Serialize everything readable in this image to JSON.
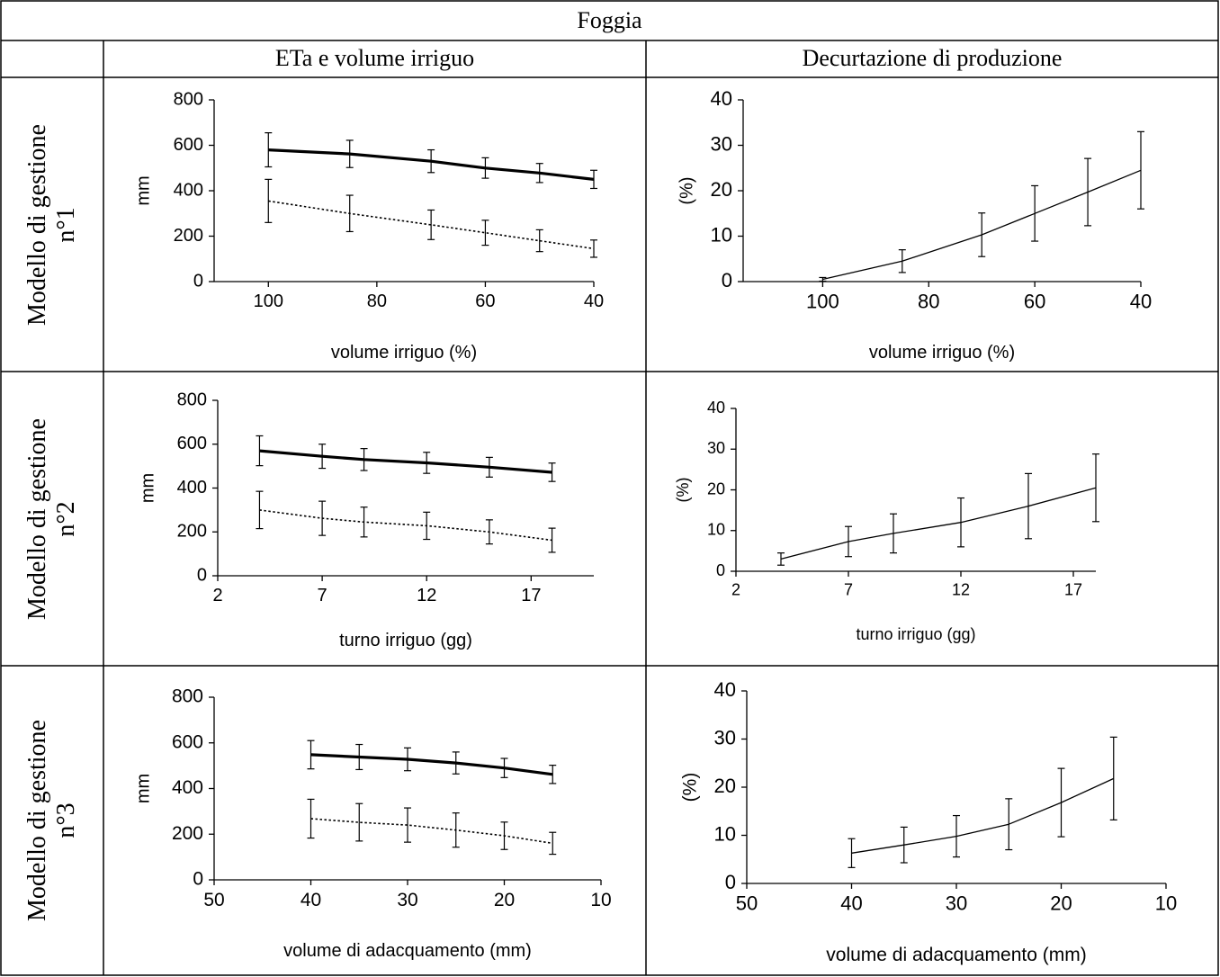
{
  "table": {
    "title": "Foggia",
    "col_headers": [
      "ETa e volume irriguo",
      "Decurtazione di produzione"
    ],
    "row_labels": [
      {
        "line1": "Modello di gestione",
        "line2": "n°1"
      },
      {
        "line1": "Modello di gestione",
        "line2": "n°2"
      },
      {
        "line1": "Modello di gestione",
        "line2": "n°3"
      }
    ]
  },
  "chart_data": [
    {
      "id": "r1-eta",
      "type": "line",
      "title": "",
      "xlabel": "volume irriguo (%)",
      "ylabel": "mm",
      "xlim": [
        110,
        40
      ],
      "x_reversed": true,
      "ylim": [
        0,
        800
      ],
      "xticks": [
        100,
        80,
        60,
        40
      ],
      "yticks": [
        0,
        200,
        400,
        600,
        800
      ],
      "x": [
        100,
        85,
        70,
        60,
        50,
        40
      ],
      "series": [
        {
          "style": "solid-thick",
          "values": [
            580,
            562,
            530,
            500,
            478,
            450
          ],
          "err": [
            75,
            60,
            50,
            45,
            42,
            40
          ]
        },
        {
          "style": "dotted",
          "values": [
            355,
            300,
            250,
            215,
            180,
            145
          ],
          "err": [
            95,
            80,
            65,
            55,
            48,
            38
          ]
        }
      ]
    },
    {
      "id": "r1-dec",
      "type": "line",
      "title": "",
      "xlabel": "volume irriguo (%)",
      "ylabel": "(%)",
      "xlim": [
        115,
        40
      ],
      "x_reversed": true,
      "ylim": [
        0,
        40
      ],
      "xticks": [
        100,
        80,
        60,
        40
      ],
      "yticks": [
        0,
        10,
        20,
        30,
        40
      ],
      "x": [
        100,
        85,
        70,
        60,
        50,
        40
      ],
      "series": [
        {
          "style": "solid-thin",
          "values": [
            0.5,
            4.5,
            10.3,
            15,
            19.7,
            24.5
          ],
          "err": [
            0.4,
            2.5,
            4.8,
            6.1,
            7.4,
            8.5
          ]
        }
      ]
    },
    {
      "id": "r2-eta",
      "type": "line",
      "title": "",
      "xlabel": "turno irriguo (gg)",
      "ylabel": "mm",
      "xlim": [
        2,
        20
      ],
      "x_reversed": false,
      "ylim": [
        0,
        800
      ],
      "xticks": [
        2,
        7,
        12,
        17
      ],
      "yticks": [
        0,
        200,
        400,
        600,
        800
      ],
      "x": [
        4,
        7,
        9,
        12,
        15,
        18
      ],
      "series": [
        {
          "style": "solid-thick",
          "values": [
            570,
            545,
            530,
            515,
            495,
            472
          ],
          "err": [
            68,
            55,
            50,
            48,
            45,
            42
          ]
        },
        {
          "style": "dotted",
          "values": [
            300,
            262,
            245,
            228,
            200,
            162
          ],
          "err": [
            85,
            78,
            68,
            62,
            55,
            55
          ]
        }
      ]
    },
    {
      "id": "r2-dec",
      "type": "line",
      "title": "",
      "xlabel": "turno irriguo (gg)",
      "ylabel": "(%)",
      "xlim": [
        2,
        18
      ],
      "x_reversed": false,
      "ylim": [
        0,
        40
      ],
      "xticks": [
        2,
        7,
        12,
        17
      ],
      "yticks": [
        0,
        10,
        20,
        30,
        40
      ],
      "x": [
        4,
        7,
        9,
        12,
        15,
        18
      ],
      "series": [
        {
          "style": "solid-thin",
          "values": [
            3,
            7.3,
            9.3,
            12,
            16,
            20.5
          ],
          "err": [
            1.5,
            3.7,
            4.8,
            6,
            8,
            8.3
          ]
        }
      ]
    },
    {
      "id": "r3-eta",
      "type": "line",
      "title": "",
      "xlabel": "volume di adacquamento (mm)",
      "ylabel": "mm",
      "xlim": [
        50,
        10
      ],
      "x_reversed": true,
      "ylim": [
        0,
        800
      ],
      "xticks": [
        50,
        40,
        30,
        20,
        10
      ],
      "yticks": [
        0,
        200,
        400,
        600,
        800
      ],
      "x": [
        40,
        35,
        30,
        25,
        20,
        15
      ],
      "series": [
        {
          "style": "solid-thick",
          "values": [
            548,
            538,
            528,
            512,
            490,
            462
          ],
          "err": [
            62,
            55,
            50,
            48,
            42,
            40
          ]
        },
        {
          "style": "dotted",
          "values": [
            268,
            252,
            240,
            218,
            193,
            160
          ],
          "err": [
            85,
            82,
            75,
            75,
            60,
            48
          ]
        }
      ]
    },
    {
      "id": "r3-dec",
      "type": "line",
      "title": "",
      "xlabel": "volume di adacquamento (mm)",
      "ylabel": "(%)",
      "xlim": [
        50,
        10
      ],
      "x_reversed": true,
      "ylim": [
        0,
        40
      ],
      "xticks": [
        50,
        40,
        30,
        20,
        10
      ],
      "yticks": [
        0,
        10,
        20,
        30,
        40
      ],
      "x": [
        40,
        35,
        30,
        25,
        20,
        15
      ],
      "series": [
        {
          "style": "solid-thin",
          "values": [
            6.3,
            8,
            9.8,
            12.3,
            16.8,
            21.8
          ],
          "err": [
            3,
            3.7,
            4.3,
            5.3,
            7.1,
            8.6
          ]
        }
      ]
    }
  ]
}
